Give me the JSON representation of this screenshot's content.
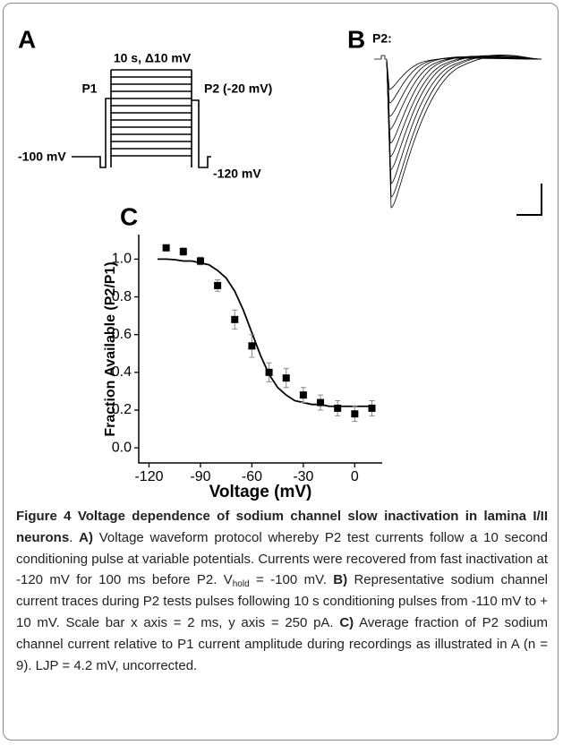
{
  "panels": {
    "a": {
      "letter": "A",
      "conditioning": "10 s, Δ10 mV",
      "p1": "P1",
      "p2": "P2 (-20 mV)",
      "hold": "-100 mV",
      "recovery": "-120 mV"
    },
    "b": {
      "letter": "B",
      "pulse": "P2:"
    },
    "c": {
      "letter": "C"
    }
  },
  "chart_data": {
    "type": "scatter",
    "xlabel": "Voltage (mV)",
    "ylabel": "Fraction Available (P2/P1)",
    "xlim": [
      -126,
      16
    ],
    "ylim": [
      -0.08,
      1.13
    ],
    "xticks": [
      -120,
      -90,
      -60,
      -30,
      0
    ],
    "yticks": [
      {
        "value": 0,
        "label": "0.0"
      },
      {
        "value": 0.2,
        "label": "0.2"
      },
      {
        "value": 0.4,
        "label": "0.4"
      },
      {
        "value": 0.6,
        "label": "0.6"
      },
      {
        "value": 0.8,
        "label": "0.8"
      },
      {
        "value": 1,
        "label": "1.0"
      }
    ],
    "series": [
      {
        "color": "#000000",
        "marker": "square",
        "x": [
          -110,
          -100,
          -90,
          -80,
          -70,
          -60,
          -50,
          -40,
          -30,
          -20,
          -10,
          0,
          10
        ],
        "values": [
          1.06,
          1.04,
          0.99,
          0.86,
          0.68,
          0.54,
          0.4,
          0.37,
          0.28,
          0.24,
          0.21,
          0.18,
          0.21
        ],
        "errors": [
          0.015,
          0.02,
          0.02,
          0.03,
          0.05,
          0.06,
          0.05,
          0.05,
          0.04,
          0.04,
          0.04,
          0.04,
          0.04
        ]
      }
    ],
    "fit": {
      "color": "#000000",
      "x": [
        -115,
        -110,
        -105,
        -100,
        -95,
        -90,
        -85,
        -80,
        -75,
        -70,
        -65,
        -60,
        -55,
        -50,
        -45,
        -40,
        -35,
        -30,
        -25,
        -20,
        -15,
        -10,
        -5,
        0,
        5,
        10
      ],
      "values": [
        1.0,
        1.0,
        0.997,
        0.99,
        0.99,
        0.98,
        0.97,
        0.94,
        0.9,
        0.83,
        0.73,
        0.61,
        0.49,
        0.39,
        0.32,
        0.28,
        0.25,
        0.24,
        0.23,
        0.23,
        0.22,
        0.22,
        0.22,
        0.22,
        0.22,
        0.22
      ]
    }
  },
  "caption": [
    {
      "text": "Figure 4 Voltage dependence of sodium channel slow inactivation in lamina I/II neurons",
      "style": "bold"
    },
    {
      "text": ". ",
      "style": "normal"
    },
    {
      "text": "A)",
      "style": "bold"
    },
    {
      "text": " Voltage waveform protocol whereby P2 test currents follow a 10 second conditioning pulse at variable potentials. Currents were recovered from fast inactivation at -120 mV for 100 ms before P2. V",
      "style": "normal"
    },
    {
      "text": "hold",
      "style": "sub"
    },
    {
      "text": " = -100 mV. ",
      "style": "normal"
    },
    {
      "text": "B)",
      "style": "bold"
    },
    {
      "text": " Representative sodium channel current traces during P2 tests pulses following 10 s conditioning pulses from -110 mV to + 10 mV. Scale bar x axis = 2 ms, y axis = 250 pA. ",
      "style": "normal"
    },
    {
      "text": "C)",
      "style": "bold"
    },
    {
      "text": " Average fraction of P2 sodium channel current relative to P1 current amplitude during recordings as illustrated in A (n = 9). LJP = 4.2 mV, uncorrected.",
      "style": "normal"
    }
  ]
}
